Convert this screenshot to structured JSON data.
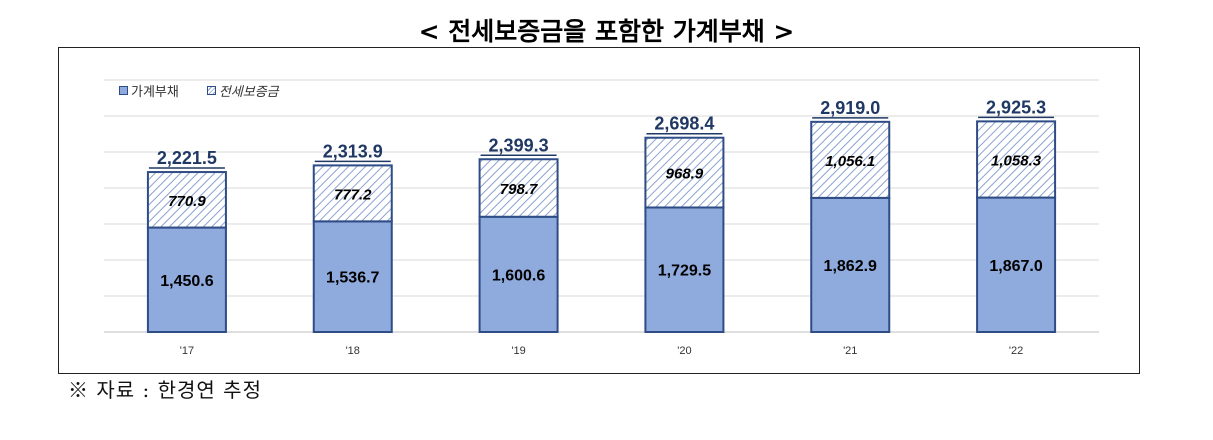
{
  "title": "< 전세보증금을 포함한 가계부채 >",
  "source": "※ 자료 : 한경연 추정",
  "legend": {
    "series1": "가계부채",
    "series2": "전세보증금"
  },
  "colors": {
    "solid_fill": "#8faadc",
    "border": "#2e4c86",
    "hatch": "#8aa2cf",
    "total_label": "#1f3864",
    "grid": "#d9d9d9"
  },
  "chart_data": {
    "type": "bar",
    "stacked": true,
    "categories": [
      "'17",
      "'18",
      "'19",
      "'20",
      "'21",
      "'22"
    ],
    "series": [
      {
        "name": "가계부채",
        "values": [
          1450.6,
          1536.7,
          1600.6,
          1729.5,
          1862.9,
          1867.0
        ],
        "labels": [
          "1,450.6",
          "1,536.7",
          "1,600.6",
          "1,729.5",
          "1,862.9",
          "1,867.0"
        ]
      },
      {
        "name": "전세보증금",
        "values": [
          770.9,
          777.2,
          798.7,
          968.9,
          1056.1,
          1058.3
        ],
        "labels": [
          "770.9",
          "777.2",
          "798.7",
          "968.9",
          "1,056.1",
          "1,058.3"
        ]
      }
    ],
    "totals": [
      2221.5,
      2313.9,
      2399.3,
      2698.4,
      2919.0,
      2925.3
    ],
    "total_labels": [
      "2,221.5",
      "2,313.9",
      "2,399.3",
      "2,698.4",
      "2,919.0",
      "2,925.3"
    ],
    "ylim": [
      0,
      3500
    ],
    "grid": true,
    "legend_position": "top-left"
  }
}
